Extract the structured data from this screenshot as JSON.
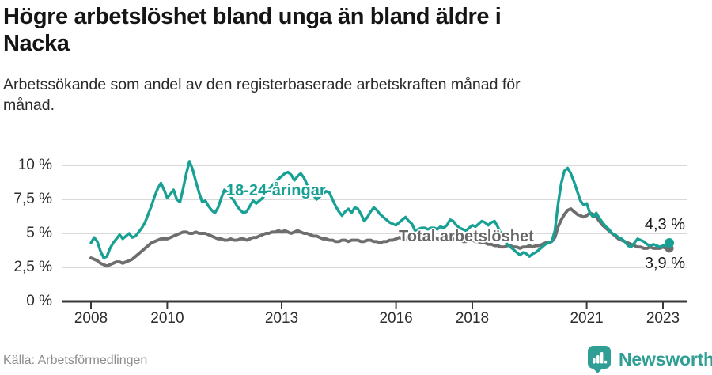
{
  "header": {
    "title_line1": "Högre arbetslöshet bland unga än bland äldre i",
    "title_line2": "Nacka",
    "subtitle_line1": "Arbetssökande som andel av den registerbaserade arbetskraften månad för",
    "subtitle_line2": "månad."
  },
  "footer": {
    "source": "Källa: Arbetsförmedlingen",
    "brand": "Newsworthy"
  },
  "colors": {
    "teal": "#17a093",
    "gray": "#6e6e6e",
    "grid": "#d9d9d9",
    "axis": "#383838",
    "value_label": "#1a1a1a",
    "brand_teal": "#2f9e94"
  },
  "chart_data": {
    "type": "line",
    "title": "Högre arbetslöshet bland unga än bland äldre i Nacka",
    "subtitle": "Arbetssökande som andel av den registerbaserade arbetskraften månad för månad.",
    "xlabel": "",
    "ylabel": "",
    "frequency": "monthly",
    "x_start_year": 2008.0,
    "x_end_year": 2023.17,
    "ylim": [
      0,
      10.5
    ],
    "grid": "horizontal",
    "legend_position": "inline-labels",
    "y_ticks": [
      {
        "value": 0,
        "label": "0 %"
      },
      {
        "value": 2.5,
        "label": "2,5 %"
      },
      {
        "value": 5,
        "label": "5 %"
      },
      {
        "value": 7.5,
        "label": "7,5 %"
      },
      {
        "value": 10,
        "label": "10 %"
      }
    ],
    "x_ticks": [
      {
        "year": 2008,
        "label": "2008"
      },
      {
        "year": 2010,
        "label": "2010"
      },
      {
        "year": 2013,
        "label": "2013"
      },
      {
        "year": 2016,
        "label": "2016"
      },
      {
        "year": 2018,
        "label": "2018"
      },
      {
        "year": 2021,
        "label": "2021"
      },
      {
        "year": 2023,
        "label": "2023"
      }
    ],
    "series": [
      {
        "name": "18-24-åringar",
        "color": "#17a093",
        "end_label": "4,3 %",
        "end_value": 4.3,
        "values": [
          4.3,
          4.7,
          4.4,
          3.7,
          3.2,
          3.3,
          3.9,
          4.3,
          4.6,
          4.9,
          4.6,
          4.8,
          5.0,
          4.7,
          4.8,
          5.1,
          5.4,
          5.8,
          6.4,
          7.0,
          7.7,
          8.3,
          8.7,
          8.2,
          7.6,
          7.9,
          8.2,
          7.5,
          7.3,
          8.3,
          9.4,
          10.3,
          9.7,
          8.8,
          8.0,
          7.3,
          7.4,
          7.0,
          6.7,
          6.5,
          6.9,
          7.6,
          8.2,
          8.0,
          7.7,
          7.4,
          7.0,
          6.7,
          6.5,
          6.6,
          7.0,
          7.4,
          7.2,
          7.4,
          7.6,
          7.9,
          8.2,
          8.5,
          8.8,
          9.0,
          9.2,
          9.4,
          9.5,
          9.3,
          8.9,
          9.2,
          9.4,
          9.1,
          8.6,
          8.1,
          7.8,
          7.5,
          7.7,
          7.9,
          8.1,
          8.0,
          7.5,
          7.0,
          6.6,
          6.3,
          6.6,
          6.8,
          6.5,
          6.9,
          6.8,
          6.4,
          5.9,
          6.2,
          6.6,
          6.9,
          6.7,
          6.4,
          6.2,
          6.0,
          5.8,
          5.7,
          5.6,
          5.8,
          6.0,
          6.2,
          5.9,
          5.7,
          5.2,
          5.3,
          5.4,
          5.4,
          5.3,
          5.4,
          5.4,
          5.3,
          5.5,
          5.4,
          5.6,
          6.0,
          5.9,
          5.6,
          5.4,
          5.3,
          5.2,
          5.4,
          5.6,
          5.5,
          5.7,
          5.9,
          5.8,
          5.6,
          5.8,
          5.9,
          5.5,
          5.0,
          4.6,
          4.2,
          4.0,
          3.8,
          3.6,
          3.4,
          3.6,
          3.5,
          3.3,
          3.5,
          3.6,
          3.8,
          4.0,
          4.2,
          4.3,
          4.4,
          5.2,
          7.2,
          8.7,
          9.6,
          9.8,
          9.4,
          8.8,
          8.1,
          7.4,
          7.1,
          7.2,
          6.5,
          6.2,
          6.5,
          6.1,
          5.8,
          5.5,
          5.3,
          5.0,
          4.9,
          4.7,
          4.6,
          4.4,
          4.1,
          4.0,
          4.3,
          4.6,
          4.5,
          4.4,
          4.2,
          4.1,
          4.2,
          4.1,
          4.0,
          4.1,
          4.2,
          4.3
        ]
      },
      {
        "name": "Total arbetslöshet",
        "color": "#6e6e6e",
        "end_label": "3,9 %",
        "end_value": 3.9,
        "values": [
          3.2,
          3.1,
          3.0,
          2.8,
          2.7,
          2.6,
          2.7,
          2.8,
          2.9,
          2.9,
          2.8,
          2.9,
          3.0,
          3.1,
          3.3,
          3.5,
          3.7,
          3.9,
          4.1,
          4.3,
          4.4,
          4.5,
          4.6,
          4.6,
          4.6,
          4.7,
          4.8,
          4.9,
          5.0,
          5.1,
          5.1,
          5.0,
          5.0,
          5.1,
          5.0,
          5.0,
          5.0,
          4.9,
          4.8,
          4.7,
          4.6,
          4.6,
          4.5,
          4.5,
          4.6,
          4.5,
          4.5,
          4.6,
          4.6,
          4.5,
          4.6,
          4.7,
          4.7,
          4.8,
          4.9,
          5.0,
          5.0,
          5.1,
          5.1,
          5.2,
          5.1,
          5.2,
          5.1,
          5.0,
          5.1,
          5.2,
          5.1,
          5.0,
          5.0,
          4.9,
          4.8,
          4.8,
          4.7,
          4.6,
          4.6,
          4.5,
          4.5,
          4.4,
          4.4,
          4.5,
          4.5,
          4.4,
          4.5,
          4.5,
          4.5,
          4.4,
          4.4,
          4.5,
          4.5,
          4.4,
          4.4,
          4.3,
          4.4,
          4.4,
          4.5,
          4.5,
          4.6,
          4.7,
          4.6,
          4.6,
          4.5,
          4.6,
          4.6,
          4.5,
          4.6,
          4.6,
          4.7,
          4.7,
          4.7,
          4.6,
          4.6,
          4.7,
          4.7,
          4.6,
          4.6,
          4.5,
          4.5,
          4.4,
          4.4,
          4.5,
          4.5,
          4.4,
          4.4,
          4.3,
          4.3,
          4.2,
          4.2,
          4.1,
          4.1,
          4.0,
          4.0,
          4.1,
          4.1,
          4.0,
          4.0,
          3.9,
          4.0,
          4.0,
          4.1,
          4.0,
          4.1,
          4.1,
          4.2,
          4.3,
          4.3,
          4.4,
          4.7,
          5.5,
          6.0,
          6.4,
          6.7,
          6.8,
          6.6,
          6.4,
          6.3,
          6.2,
          6.3,
          6.5,
          6.4,
          6.2,
          5.9,
          5.6,
          5.4,
          5.2,
          5.0,
          4.8,
          4.6,
          4.5,
          4.4,
          4.3,
          4.2,
          4.1,
          4.0,
          4.0,
          3.9,
          3.9,
          4.0,
          3.9,
          3.9,
          3.9,
          4.0,
          3.9,
          3.9
        ]
      }
    ]
  }
}
